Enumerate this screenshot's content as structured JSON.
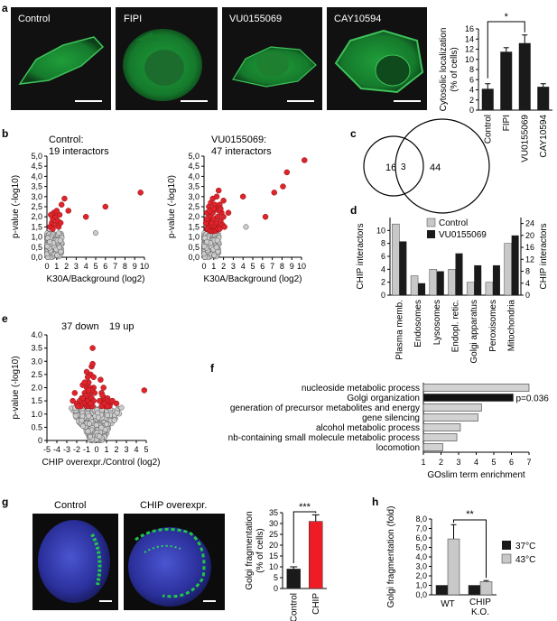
{
  "panel_a": {
    "letter": "a",
    "images": [
      "Control",
      "FIPI",
      "VU0155069",
      "CAY10594"
    ]
  },
  "panel_b": {
    "letter": "b",
    "left_title_1": "Control:",
    "left_title_2": "19 interactors",
    "right_title_1": "VU0155069:",
    "right_title_2": "47 interactors"
  },
  "panel_c": {
    "letter": "c",
    "left": "16",
    "overlap": "3",
    "right": "44"
  },
  "panel_d": {
    "letter": "d"
  },
  "panel_e": {
    "letter": "e",
    "down_label": "37 down",
    "up_label": "19 up"
  },
  "panel_f": {
    "letter": "f"
  },
  "panel_g": {
    "letter": "g",
    "images": [
      "Control",
      "CHIP overexpr."
    ]
  },
  "panel_h": {
    "letter": "h"
  },
  "chart_data": [
    {
      "id": "a",
      "type": "bar",
      "categories": [
        "Control",
        "FIPI",
        "VU0155069",
        "CAY10594"
      ],
      "values": [
        4.2,
        11.5,
        13.2,
        4.6
      ],
      "errors": [
        1.0,
        0.8,
        1.6,
        0.6
      ],
      "ylabel": "Cytosolic localization (% of cells)",
      "ylim": [
        0,
        16
      ],
      "yticks": [
        "0",
        "2",
        "4",
        "6",
        "8",
        "10",
        "12",
        "14",
        "16"
      ],
      "significance": "*",
      "color": "#1a1a1a"
    },
    {
      "id": "b1",
      "type": "scatter",
      "ylabel": "p-value (-log10)",
      "xlabel": "K30A/Background (log2)",
      "xlim": [
        0,
        10
      ],
      "ylim": [
        0,
        5
      ],
      "xticks": [
        "0",
        "1",
        "2",
        "3",
        "4",
        "5",
        "6",
        "7",
        "8",
        "9",
        "10"
      ],
      "yticks": [
        "0,0",
        "0,5",
        "1,0",
        "1,5",
        "2,0",
        "2,5",
        "3,0",
        "3,5",
        "4,0",
        "4,5",
        "5,0"
      ],
      "hits": [
        [
          0.3,
          1.5
        ],
        [
          0.5,
          1.7
        ],
        [
          0.6,
          1.9
        ],
        [
          0.8,
          1.6
        ],
        [
          0.9,
          2.0
        ],
        [
          1.1,
          1.8
        ],
        [
          1.2,
          1.5
        ],
        [
          1.4,
          1.7
        ],
        [
          0.7,
          2.2
        ],
        [
          1.0,
          2.3
        ],
        [
          1.5,
          2.6
        ],
        [
          1.8,
          2.9
        ],
        [
          0.4,
          2.1
        ],
        [
          0.6,
          1.4
        ],
        [
          1.3,
          2.1
        ],
        [
          2.2,
          2.3
        ],
        [
          4.0,
          2.0
        ],
        [
          6.0,
          2.5
        ],
        [
          9.6,
          3.2
        ]
      ],
      "gray_extra": [
        [
          5.0,
          1.2
        ]
      ]
    },
    {
      "id": "b2",
      "type": "scatter",
      "ylabel": "p-value (-log10)",
      "xlabel": "K30A/Background (log2)",
      "xlim": [
        0,
        10
      ],
      "ylim": [
        0,
        5
      ],
      "xticks": [
        "0",
        "1",
        "2",
        "3",
        "4",
        "5",
        "6",
        "7",
        "8",
        "9",
        "10"
      ],
      "yticks": [
        "0,0",
        "0,5",
        "1,0",
        "1,5",
        "2,0",
        "2,5",
        "3,0",
        "3,5",
        "4,0",
        "4,5",
        "5,0"
      ],
      "hits": [
        [
          0.3,
          1.4
        ],
        [
          0.4,
          1.6
        ],
        [
          0.5,
          1.8
        ],
        [
          0.6,
          2.0
        ],
        [
          0.7,
          1.5
        ],
        [
          0.8,
          1.7
        ],
        [
          0.9,
          2.2
        ],
        [
          1.0,
          1.9
        ],
        [
          1.1,
          1.5
        ],
        [
          1.2,
          2.4
        ],
        [
          1.3,
          1.7
        ],
        [
          1.4,
          2.0
        ],
        [
          1.5,
          1.5
        ],
        [
          1.6,
          2.6
        ],
        [
          1.7,
          1.8
        ],
        [
          1.8,
          2.2
        ],
        [
          0.3,
          2.2
        ],
        [
          0.5,
          2.5
        ],
        [
          0.7,
          2.7
        ],
        [
          0.9,
          2.9
        ],
        [
          1.1,
          2.6
        ],
        [
          1.3,
          3.0
        ],
        [
          1.5,
          2.3
        ],
        [
          1.9,
          1.6
        ],
        [
          2.0,
          2.0
        ],
        [
          2.1,
          1.5
        ],
        [
          0.4,
          1.4
        ],
        [
          0.6,
          1.3
        ],
        [
          0.8,
          1.3
        ],
        [
          1.0,
          1.3
        ],
        [
          1.2,
          1.3
        ],
        [
          1.4,
          1.4
        ],
        [
          1.6,
          1.4
        ],
        [
          0.2,
          1.7
        ],
        [
          0.3,
          1.9
        ],
        [
          0.6,
          2.3
        ],
        [
          1.0,
          2.4
        ],
        [
          1.7,
          2.4
        ],
        [
          2.0,
          2.8
        ],
        [
          1.5,
          3.3
        ],
        [
          2.5,
          2.2
        ],
        [
          4.0,
          3.0
        ],
        [
          6.3,
          2.0
        ],
        [
          7.2,
          3.2
        ],
        [
          8.1,
          3.5
        ],
        [
          8.5,
          4.2
        ],
        [
          10.3,
          4.8
        ]
      ],
      "gray_extra": [
        [
          4.3,
          1.5
        ]
      ]
    },
    {
      "id": "d",
      "type": "bar",
      "categories": [
        "Plasma memb.",
        "Endosomes",
        "Lysosomes",
        "Endopl. retic.",
        "Golgi apparatus",
        "Peroxisomes",
        "Mitochondria"
      ],
      "series": [
        {
          "name": "Control",
          "axis": "left",
          "values": [
            11,
            3,
            4,
            4,
            2,
            2,
            8
          ]
        },
        {
          "name": "VU0155069",
          "axis": "right",
          "values": [
            18,
            4,
            8,
            14,
            10,
            10,
            20
          ]
        }
      ],
      "ylabel": "CHIP interactors",
      "y2label": "CHIP interactors",
      "ylim": [
        0,
        12
      ],
      "y2lim": [
        0,
        26
      ],
      "yticks": [
        "0",
        "2",
        "4",
        "6",
        "8",
        "10"
      ],
      "y2ticks": [
        "0",
        "4",
        "8",
        "12",
        "16",
        "20",
        "24"
      ],
      "legend": "top-right",
      "colors": {
        "Control": "#c8c8c8",
        "VU0155069": "#1a1a1a"
      }
    },
    {
      "id": "e",
      "type": "scatter",
      "ylabel": "p-value (-log10)",
      "xlabel": "CHIP overexpr./Control (log2)",
      "xlim": [
        -5,
        5
      ],
      "ylim": [
        0,
        4
      ],
      "xticks": [
        "-5",
        "-4",
        "-3",
        "-2",
        "-1",
        "0",
        "1",
        "2",
        "3",
        "4",
        "5"
      ],
      "yticks": [
        "0",
        "0.5",
        "1.0",
        "1.5",
        "2.0",
        "2.5",
        "3.0",
        "3.5",
        "4.0"
      ],
      "down": [
        [
          -0.4,
          3.5
        ],
        [
          -0.5,
          2.8
        ],
        [
          -0.6,
          2.5
        ],
        [
          -0.8,
          2.2
        ],
        [
          -1.0,
          2.0
        ],
        [
          -0.3,
          2.0
        ],
        [
          -1.2,
          1.8
        ],
        [
          -1.5,
          1.6
        ],
        [
          -1.1,
          1.5
        ],
        [
          -0.9,
          1.5
        ],
        [
          -0.7,
          1.7
        ],
        [
          -0.5,
          1.6
        ],
        [
          -0.3,
          1.5
        ],
        [
          -1.3,
          1.4
        ],
        [
          -1.7,
          1.5
        ],
        [
          -2.2,
          1.8
        ],
        [
          -2.0,
          1.4
        ],
        [
          -1.0,
          1.3
        ],
        [
          -0.8,
          1.3
        ],
        [
          -0.6,
          1.3
        ],
        [
          -0.4,
          1.3
        ],
        [
          -1.4,
          2.1
        ],
        [
          -0.9,
          2.4
        ],
        [
          -0.7,
          2.0
        ],
        [
          -0.2,
          1.8
        ],
        [
          -1.6,
          1.3
        ],
        [
          -1.9,
          1.3
        ],
        [
          -0.5,
          1.9
        ],
        [
          -1.2,
          2.2
        ],
        [
          -0.6,
          1.4
        ],
        [
          -1.1,
          1.7
        ],
        [
          -0.3,
          2.4
        ],
        [
          -0.8,
          1.9
        ],
        [
          -1.4,
          1.6
        ],
        [
          -2.4,
          1.5
        ],
        [
          -1.0,
          2.6
        ],
        [
          -0.4,
          2.9
        ]
      ],
      "up": [
        [
          0.4,
          2.3
        ],
        [
          0.5,
          1.8
        ],
        [
          0.6,
          1.5
        ],
        [
          0.8,
          1.6
        ],
        [
          1.0,
          1.4
        ],
        [
          1.1,
          1.6
        ],
        [
          1.2,
          1.5
        ],
        [
          1.4,
          1.4
        ],
        [
          0.7,
          2.0
        ],
        [
          0.9,
          1.3
        ],
        [
          1.3,
          1.3
        ],
        [
          0.3,
          1.5
        ],
        [
          0.5,
          1.3
        ],
        [
          1.6,
          1.5
        ],
        [
          2.0,
          1.4
        ],
        [
          0.8,
          1.4
        ],
        [
          1.1,
          1.3
        ],
        [
          0.6,
          1.7
        ],
        [
          4.8,
          1.9
        ]
      ]
    },
    {
      "id": "f",
      "type": "bar",
      "orientation": "horizontal",
      "categories": [
        "nucleoside metabolic process",
        "Golgi organization",
        "generation of precursor metabolites and energy",
        "gene silencing",
        "alcohol metabolic process",
        "nb-containing small molecule metabolic process",
        "locomotion"
      ],
      "values": [
        7.0,
        6.1,
        4.3,
        4.1,
        3.1,
        2.9,
        2.1
      ],
      "highlight": "Golgi organization",
      "annotation": "p=0.036",
      "xlabel": "GOslim term enrichment",
      "xlim": [
        1,
        7
      ],
      "xticks": [
        "1",
        "2",
        "3",
        "4",
        "5",
        "6",
        "7"
      ],
      "colors": {
        "default": "#d2d2d2",
        "highlight": "#111111"
      }
    },
    {
      "id": "g",
      "type": "bar",
      "categories": [
        "Control",
        "CHIP"
      ],
      "values": [
        9,
        31
      ],
      "errors": [
        1.0,
        3.0
      ],
      "ylabel": "Golgi fragmentation (% of cells)",
      "ylim": [
        0,
        35
      ],
      "yticks": [
        "0",
        "5",
        "10",
        "15",
        "20",
        "25",
        "30",
        "35"
      ],
      "significance": "***",
      "colors": [
        "#1a1a1a",
        "#ee1c24"
      ]
    },
    {
      "id": "h",
      "type": "bar",
      "categories": [
        "WT",
        "CHIP K.O."
      ],
      "series": [
        {
          "name": "37°C",
          "values": [
            1.0,
            1.0
          ],
          "errors": [
            0,
            0
          ]
        },
        {
          "name": "43°C",
          "values": [
            5.9,
            1.4
          ],
          "errors": [
            1.5,
            0.1
          ]
        }
      ],
      "ylabel": "Golgi fragmentation (fold)",
      "ylim": [
        0,
        8
      ],
      "yticks": [
        "0,0",
        "1,0",
        "2,0",
        "3,0",
        "4,0",
        "5,0",
        "6,0",
        "7,0",
        "8,0"
      ],
      "significance": "**",
      "legend": "right",
      "colors": {
        "37°C": "#1a1a1a",
        "43°C": "#c8c8c8"
      }
    }
  ]
}
